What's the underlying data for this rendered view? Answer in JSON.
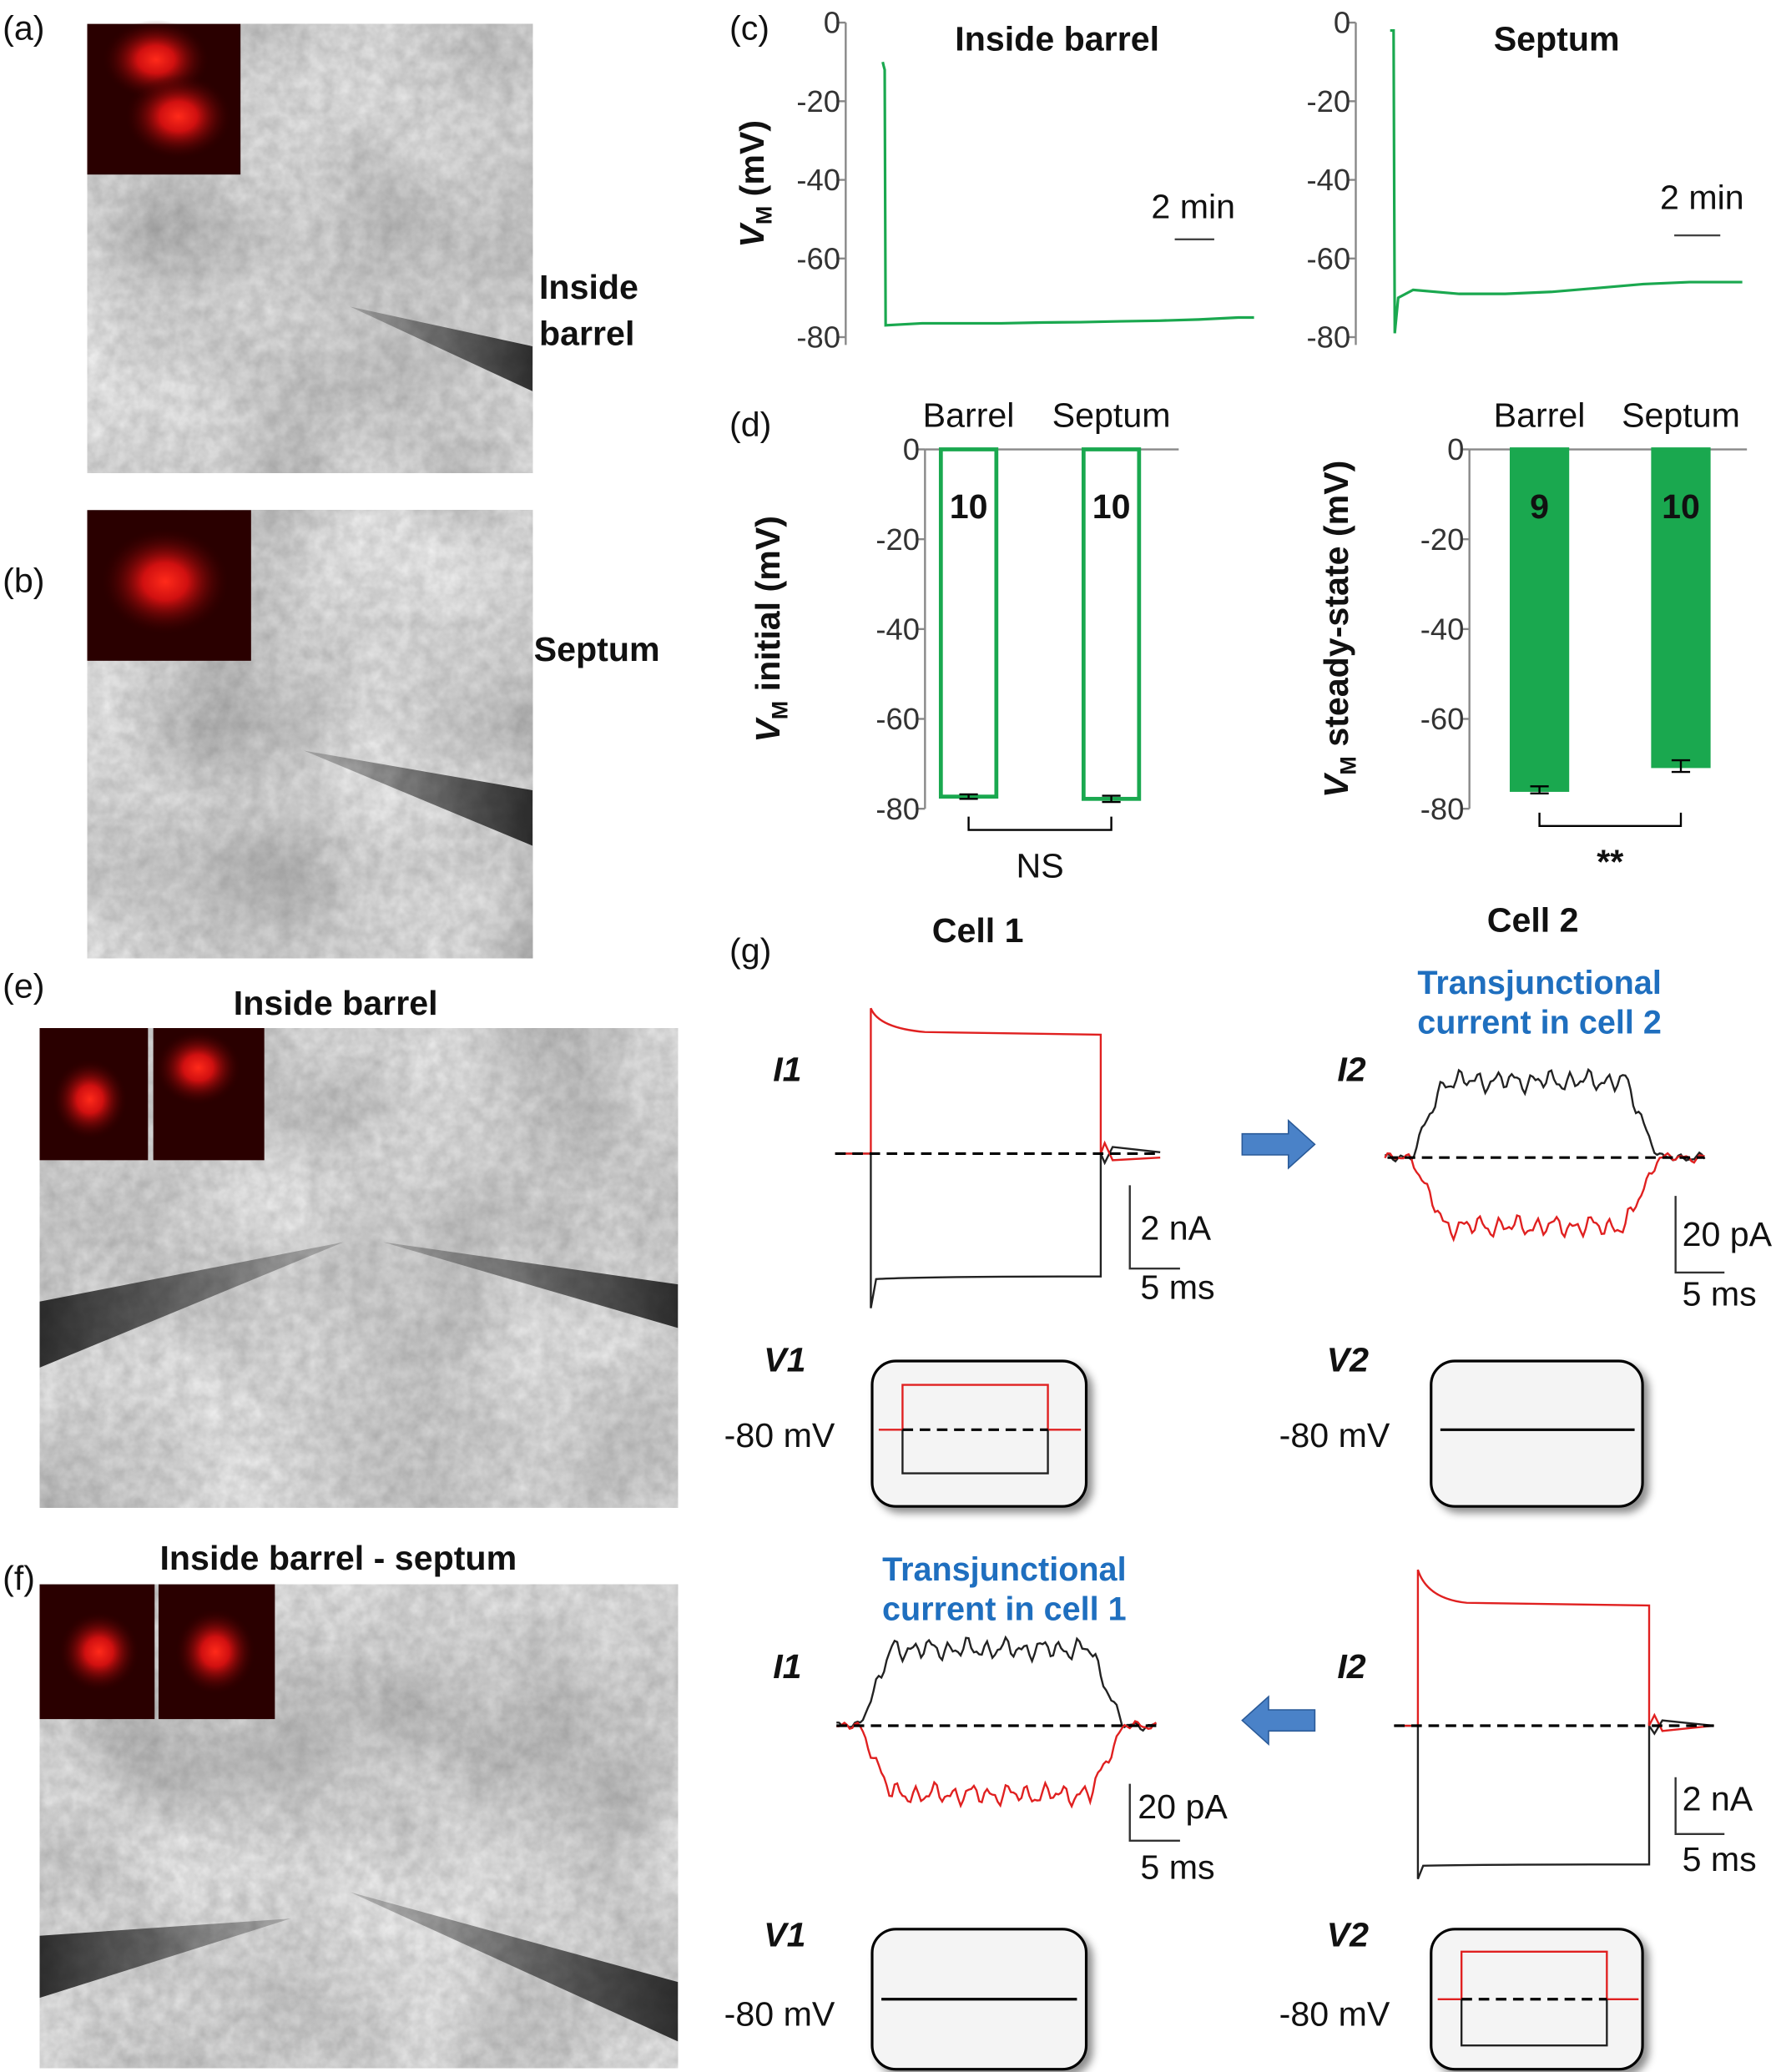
{
  "panels": {
    "a": {
      "label": "(a)",
      "caption": [
        "Inside",
        "barrel"
      ]
    },
    "b": {
      "label": "(b)",
      "caption": [
        "Septum"
      ]
    },
    "c": {
      "label": "(c)"
    },
    "d": {
      "label": "(d)"
    },
    "e": {
      "label": "(e)",
      "title": "Inside barrel"
    },
    "f": {
      "label": "(f)",
      "title": "Inside barrel - septum"
    },
    "g": {
      "label": "(g)",
      "cells": [
        "Cell 1",
        "Cell 2"
      ],
      "transjunctional_cell2": [
        "Transjunctional",
        "current in cell 2"
      ],
      "transjunctional_cell1": [
        "Transjunctional",
        "current in cell 1"
      ],
      "trace_labels": [
        "I1",
        "I2",
        "V1",
        "V2"
      ],
      "holding": "-80 mV",
      "scale_bars": {
        "nA": "2 nA",
        "pA": "20 pA",
        "ms": "5 ms"
      }
    }
  },
  "chart_data": [
    {
      "type": "line",
      "title": "Inside barrel",
      "ylabel": [
        "V",
        "M",
        " (mV)"
      ],
      "x": [
        0,
        0.05,
        0.1,
        0.15,
        2,
        4,
        6,
        8,
        10,
        12,
        14,
        16,
        18,
        18.8
      ],
      "series": [
        {
          "name": "Inside barrel",
          "color": "#1aa84f",
          "values": [
            -10,
            -11,
            -12,
            -77,
            -76.5,
            -76.5,
            -76.5,
            -76.3,
            -76.2,
            -76,
            -75.8,
            -75.5,
            -75,
            -75
          ]
        }
      ],
      "xlim": [
        0,
        19
      ],
      "ylim": [
        -82,
        0
      ],
      "yticks": [
        0,
        -20,
        -40,
        -60,
        -80
      ],
      "scale_bar": {
        "value": 2,
        "label": "2 min"
      }
    },
    {
      "type": "line",
      "title": "Septum",
      "x": [
        0,
        0.15,
        0.2,
        0.35,
        1,
        3,
        5,
        7,
        9,
        11,
        13,
        15.3
      ],
      "series": [
        {
          "name": "Septum",
          "color": "#1aa84f",
          "values": [
            -2,
            -2,
            -79,
            -70,
            -68,
            -69,
            -69,
            -68.5,
            -67.5,
            -66.5,
            -66,
            -66
          ]
        }
      ],
      "xlim": [
        0,
        15.5
      ],
      "ylim": [
        -82,
        0
      ],
      "yticks": [
        0,
        -20,
        -40,
        -60,
        -80
      ],
      "scale_bar": {
        "value": 2,
        "label": "2 min"
      }
    },
    {
      "type": "bar",
      "ylabel": [
        "V",
        "M",
        " initial (mV)"
      ],
      "categories": [
        "Barrel",
        "Septum"
      ],
      "values": [
        -77.3,
        -77.8
      ],
      "errors": [
        0.5,
        0.7
      ],
      "n": [
        10,
        10
      ],
      "color": "#1aa84f",
      "filled": false,
      "ylim": [
        -80,
        0
      ],
      "yticks": [
        0,
        -20,
        -40,
        -60,
        -80
      ],
      "significance": "NS"
    },
    {
      "type": "bar",
      "ylabel": [
        "V",
        "M",
        " steady-state (mV)"
      ],
      "categories": [
        "Barrel",
        "Septum"
      ],
      "values": [
        -75.8,
        -70.5
      ],
      "errors": [
        0.8,
        1.3
      ],
      "n": [
        9,
        10
      ],
      "color": "#1aa84f",
      "filled": true,
      "ylim": [
        -80,
        0
      ],
      "yticks": [
        0,
        -20,
        -40,
        -60,
        -80
      ],
      "significance": "**"
    }
  ]
}
